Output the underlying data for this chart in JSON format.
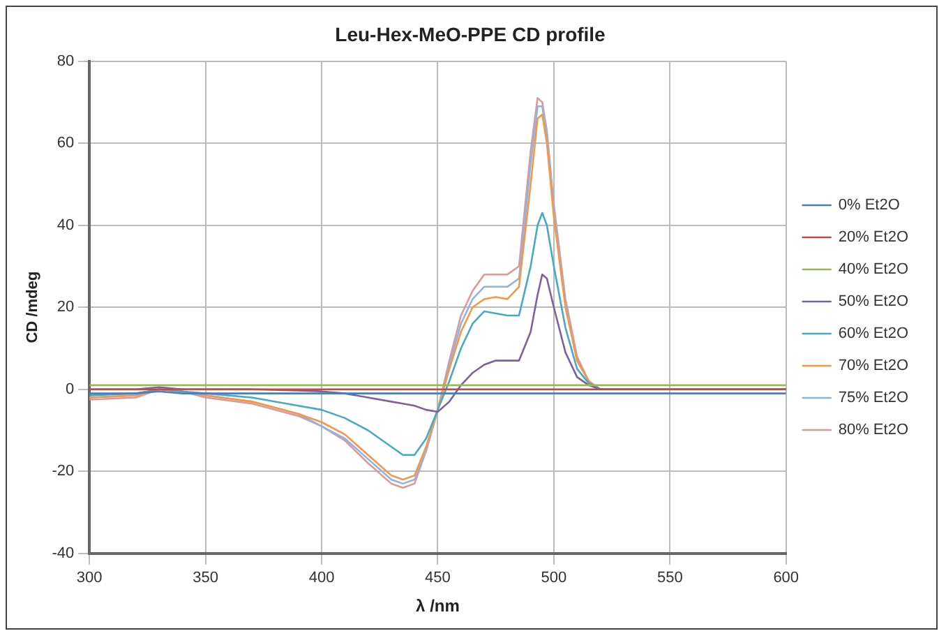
{
  "chart_data": {
    "type": "line",
    "title": "Leu-Hex-MeO-PPE CD profile",
    "xlabel": "λ /nm",
    "ylabel": "CD /mdeg",
    "x": [
      300,
      320,
      330,
      340,
      350,
      370,
      390,
      400,
      410,
      420,
      430,
      435,
      440,
      445,
      450,
      455,
      460,
      465,
      470,
      475,
      480,
      485,
      490,
      493,
      495,
      497,
      500,
      505,
      510,
      515,
      520,
      550,
      600
    ],
    "xlim": [
      300,
      600
    ],
    "xticks": [
      300,
      350,
      400,
      450,
      500,
      550,
      600
    ],
    "ylim": [
      -40,
      80
    ],
    "yticks": [
      -40,
      -20,
      0,
      20,
      40,
      60,
      80
    ],
    "grid": true,
    "legend": "right",
    "marker": "none",
    "line_style": "solid",
    "series": [
      {
        "name": "0% Et2O",
        "color": "#4a7ebb",
        "values": [
          -1,
          -1,
          -0.5,
          -1,
          -1,
          -1,
          -1,
          -1,
          -1,
          -1,
          -1,
          -1,
          -1,
          -1,
          -1,
          -1,
          -1,
          -1,
          -1,
          -1,
          -1,
          -1,
          -1,
          -1,
          -1,
          -1,
          -1,
          -1,
          -1,
          -1,
          -1,
          -1,
          -1
        ]
      },
      {
        "name": "20% Et2O",
        "color": "#be4b48",
        "values": [
          0,
          0,
          0,
          0,
          0,
          0,
          0,
          0,
          0,
          0,
          0,
          0,
          0,
          0,
          0,
          0,
          0,
          0,
          0,
          0,
          0,
          0,
          0,
          0,
          0,
          0,
          0,
          0,
          0,
          0,
          0,
          0,
          0
        ]
      },
      {
        "name": "40% Et2O",
        "color": "#98b954",
        "values": [
          1,
          1,
          1,
          1,
          1,
          1,
          1,
          1,
          1,
          1,
          1,
          1,
          1,
          1,
          1,
          1,
          1,
          1,
          1,
          1,
          1,
          1,
          1,
          1,
          1,
          1,
          1,
          1,
          1,
          1,
          1,
          1,
          1
        ]
      },
      {
        "name": "50% Et2O",
        "color": "#7d60a0",
        "values": [
          0,
          0,
          0.5,
          0,
          0,
          0,
          -0.3,
          -0.5,
          -1,
          -2,
          -3,
          -3.5,
          -4,
          -5,
          -5.5,
          -3,
          1,
          4,
          6,
          7,
          7,
          7,
          14,
          23,
          28,
          27,
          20,
          9,
          3,
          1,
          0,
          0,
          0
        ]
      },
      {
        "name": "60% Et2O",
        "color": "#46aac5",
        "values": [
          -1.5,
          -1,
          0,
          -0.5,
          -1,
          -2,
          -4,
          -5,
          -7,
          -10,
          -14,
          -16,
          -16,
          -12,
          -5,
          2,
          10,
          16,
          19,
          18.5,
          18,
          18,
          30,
          40,
          43,
          40,
          30,
          15,
          5,
          1.5,
          0,
          0,
          0
        ]
      },
      {
        "name": "70% Et2O",
        "color": "#f79646",
        "values": [
          -2,
          -1.5,
          0,
          -0.5,
          -1.5,
          -3,
          -6,
          -8,
          -11,
          -16,
          -21,
          -22,
          -21,
          -14,
          -5,
          5,
          14,
          20,
          22,
          22.5,
          22,
          25,
          50,
          66,
          67,
          60,
          42,
          20,
          7,
          2,
          0,
          0,
          0
        ]
      },
      {
        "name": "75% Et2O",
        "color": "#8eb4e3",
        "values": [
          -2,
          -1.5,
          0,
          -0.5,
          -1.5,
          -3,
          -6,
          -9,
          -12,
          -17,
          -22,
          -23,
          -22,
          -15,
          -5,
          6,
          16,
          22,
          25,
          25,
          25,
          27,
          55,
          69,
          69,
          62,
          44,
          21,
          7,
          2,
          0,
          0,
          0
        ]
      },
      {
        "name": "80% Et2O",
        "color": "#d99a98",
        "values": [
          -2.5,
          -2,
          0,
          -0.5,
          -2,
          -3.5,
          -6.5,
          -9,
          -12.5,
          -18,
          -23,
          -24,
          -23,
          -15,
          -5,
          7,
          18,
          24,
          28,
          28,
          28,
          30,
          58,
          71,
          70,
          63,
          45,
          22,
          8,
          2,
          0,
          0,
          0
        ]
      }
    ]
  }
}
